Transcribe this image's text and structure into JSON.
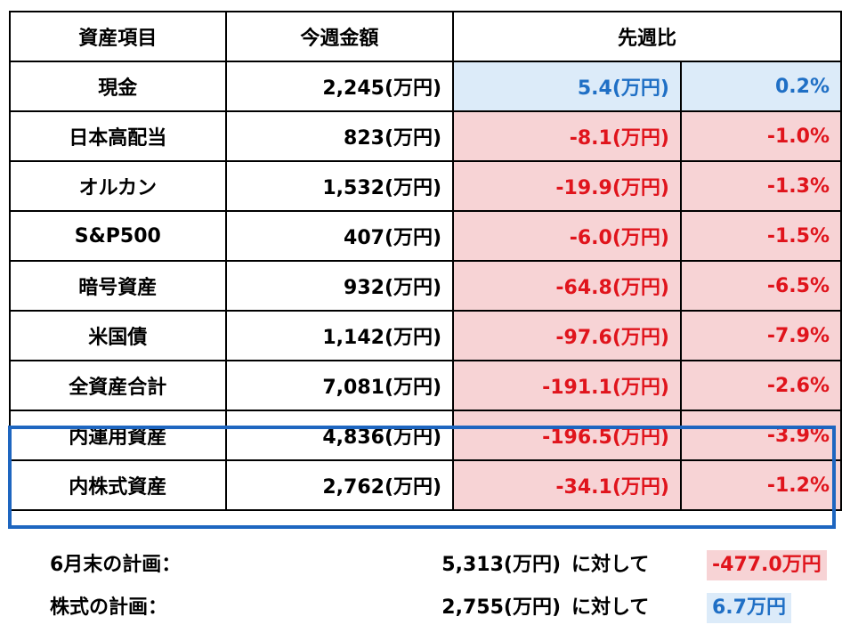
{
  "header": {
    "item": "資産項目",
    "amount": "今週金額",
    "change": "先週比"
  },
  "rows": [
    {
      "name": "現金",
      "amount": "2,245(万円)",
      "diff": "5.4(万円)",
      "pct": "0.2%",
      "trend": "pos"
    },
    {
      "name": "日本高配当",
      "amount": "823(万円)",
      "diff": "-8.1(万円)",
      "pct": "-1.0%",
      "trend": "neg"
    },
    {
      "name": "オルカン",
      "amount": "1,532(万円)",
      "diff": "-19.9(万円)",
      "pct": "-1.3%",
      "trend": "neg"
    },
    {
      "name": "S&P500",
      "amount": "407(万円)",
      "diff": "-6.0(万円)",
      "pct": "-1.5%",
      "trend": "neg"
    },
    {
      "name": "暗号資産",
      "amount": "932(万円)",
      "diff": "-64.8(万円)",
      "pct": "-6.5%",
      "trend": "neg"
    },
    {
      "name": "米国債",
      "amount": "1,142(万円)",
      "diff": "-97.6(万円)",
      "pct": "-7.9%",
      "trend": "neg"
    },
    {
      "name": "全資産合計",
      "amount": "7,081(万円)",
      "diff": "-191.1(万円)",
      "pct": "-2.6%",
      "trend": "neg"
    },
    {
      "name": "内運用資産",
      "amount": "4,836(万円)",
      "diff": "-196.5(万円)",
      "pct": "-3.9%",
      "trend": "neg"
    },
    {
      "name": "内株式資産",
      "amount": "2,762(万円)",
      "diff": "-34.1(万円)",
      "pct": "-1.2%",
      "trend": "neg"
    }
  ],
  "plans": [
    {
      "label": "6月末の計画：",
      "amount": "5,313(万円)",
      "connector": "に対して",
      "diff": "-477.0万円",
      "trend": "neg"
    },
    {
      "label": "株式の計画：",
      "amount": "2,755(万円)",
      "connector": "に対して",
      "diff": "6.7万円",
      "trend": "pos"
    }
  ],
  "colors": {
    "positive_text": "#1f6fc5",
    "positive_bg": "#dcebf9",
    "negative_text": "#e0141c",
    "negative_bg": "#f7d3d5",
    "highlight_border": "#1e66c0"
  }
}
